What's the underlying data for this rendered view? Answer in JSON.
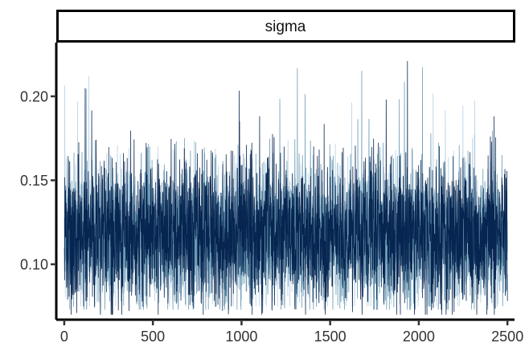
{
  "chart_data": {
    "type": "line",
    "facet_label": "sigma",
    "title": "",
    "xlabel": "",
    "ylabel": "",
    "xlim": [
      -45,
      2540
    ],
    "ylim": [
      0.067,
      0.232
    ],
    "x_ticks": [
      0,
      500,
      1000,
      1500,
      2000,
      2500
    ],
    "y_ticks": [
      0.1,
      0.15,
      0.2
    ],
    "x_tick_labels": [
      "0",
      "500",
      "1000",
      "1500",
      "2000",
      "2500"
    ],
    "y_tick_labels": [
      "0.10",
      "0.15",
      "0.20"
    ],
    "n_draws": 2500,
    "grid": false,
    "legend": "none",
    "series": [
      {
        "color": "#d1e1ec",
        "center": 0.118,
        "spread": 0.01,
        "range": [
          0.1,
          0.14
        ]
      },
      {
        "color": "#b3cde0",
        "center": 0.117,
        "spread": 0.02,
        "range": [
          0.075,
          0.215
        ]
      },
      {
        "color": "#6497b1",
        "center": 0.117,
        "spread": 0.021,
        "range": [
          0.073,
          0.222
        ]
      },
      {
        "color": "#011f4b",
        "center": 0.118,
        "spread": 0.022,
        "range": [
          0.07,
          0.23
        ]
      }
    ]
  }
}
